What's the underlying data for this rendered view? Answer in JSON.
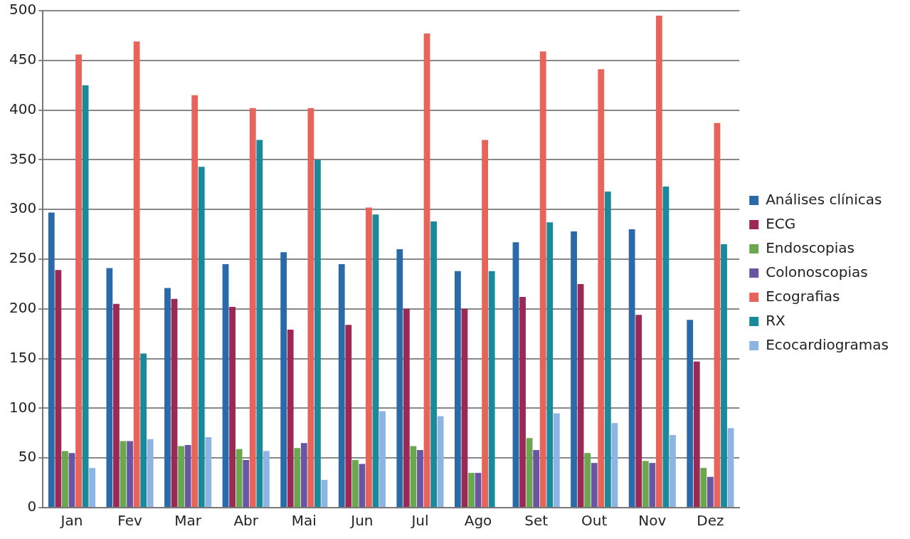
{
  "chart_data": {
    "type": "bar",
    "categories": [
      "Jan",
      "Fev",
      "Mar",
      "Abr",
      "Mai",
      "Jun",
      "Jul",
      "Ago",
      "Set",
      "Out",
      "Nov",
      "Dez"
    ],
    "series": [
      {
        "name": "Análises clínicas",
        "color": "#2a6aa8",
        "values": [
          297,
          241,
          221,
          245,
          257,
          245,
          260,
          238,
          267,
          278,
          280,
          189
        ]
      },
      {
        "name": "ECG",
        "color": "#9a2a55",
        "values": [
          239,
          205,
          210,
          202,
          179,
          184,
          200,
          200,
          212,
          225,
          194,
          147
        ]
      },
      {
        "name": "Endoscopias",
        "color": "#6aa84f",
        "values": [
          57,
          67,
          62,
          59,
          60,
          48,
          62,
          35,
          70,
          55,
          47,
          40
        ]
      },
      {
        "name": "Colonoscopias",
        "color": "#6a55a3",
        "values": [
          55,
          67,
          63,
          48,
          65,
          44,
          58,
          35,
          58,
          45,
          45,
          31
        ]
      },
      {
        "name": "Ecografias",
        "color": "#e8645a",
        "values": [
          456,
          469,
          415,
          402,
          402,
          302,
          477,
          370,
          459,
          441,
          495,
          387
        ]
      },
      {
        "name": "RX",
        "color": "#1a8a9a",
        "values": [
          425,
          155,
          343,
          370,
          350,
          295,
          288,
          238,
          287,
          318,
          323,
          265
        ]
      },
      {
        "name": "Ecocardiogramas",
        "color": "#8db4e2",
        "values": [
          40,
          69,
          71,
          57,
          28,
          97,
          92,
          null,
          95,
          85,
          73,
          80
        ]
      }
    ],
    "ylim": [
      0,
      500
    ],
    "yticks": [
      0,
      50,
      100,
      150,
      200,
      250,
      300,
      350,
      400,
      450,
      500
    ],
    "grid": "y",
    "legend": "right"
  }
}
